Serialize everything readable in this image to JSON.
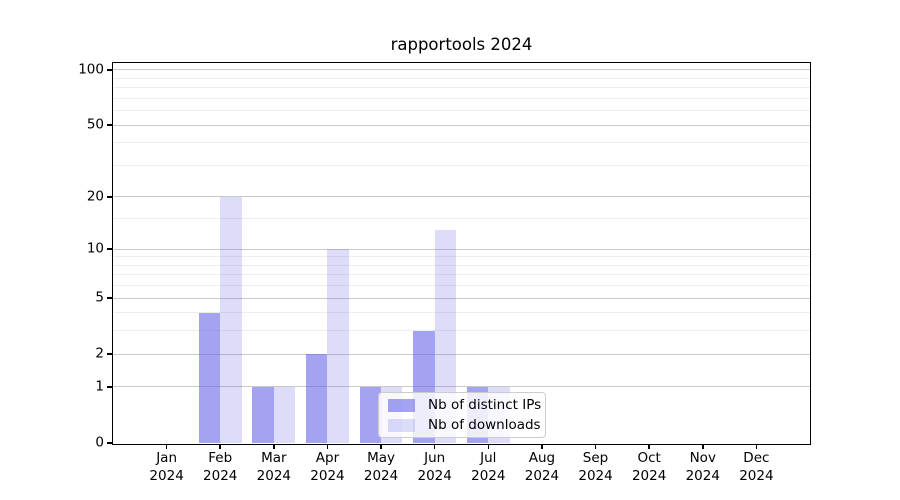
{
  "title": "rapportools 2024",
  "chart_data": {
    "type": "bar",
    "title": "rapportools 2024",
    "categories": [
      "Jan",
      "Feb",
      "Mar",
      "Apr",
      "May",
      "Jun",
      "Jul",
      "Aug",
      "Sep",
      "Oct",
      "Nov",
      "Dec"
    ],
    "category_year": "2024",
    "series": [
      {
        "name": "Nb of distinct IPs",
        "color": "rgba(102,102,232,0.60)",
        "values": [
          0,
          4,
          1,
          2,
          1,
          3,
          1,
          0,
          0,
          0,
          0,
          0
        ]
      },
      {
        "name": "Nb of downloads",
        "color": "rgba(102,102,232,0.22)",
        "values": [
          0,
          20,
          1,
          10,
          1,
          13,
          1,
          0,
          0,
          0,
          0,
          0
        ]
      }
    ],
    "y_scale": "log10(value+1)",
    "y_major_ticks": [
      0,
      1,
      2,
      5,
      10,
      20,
      50,
      100
    ],
    "y_minor_gridlines": [
      3,
      4,
      6,
      7,
      8,
      9,
      15,
      30,
      40,
      60,
      70,
      80,
      90
    ],
    "y_axis_top_value": 109,
    "grid": true,
    "legend_position": "lower right"
  },
  "colors": {
    "bar_distinct_ips": "rgba(102,102,232,0.60)",
    "bar_downloads": "rgba(102,102,232,0.22)",
    "grid_major": "#c9c9c9",
    "grid_minor": "#ededed",
    "axis": "#000000",
    "legend_border": "#cccccc",
    "legend_background": "rgba(255,255,255,0.8)"
  }
}
